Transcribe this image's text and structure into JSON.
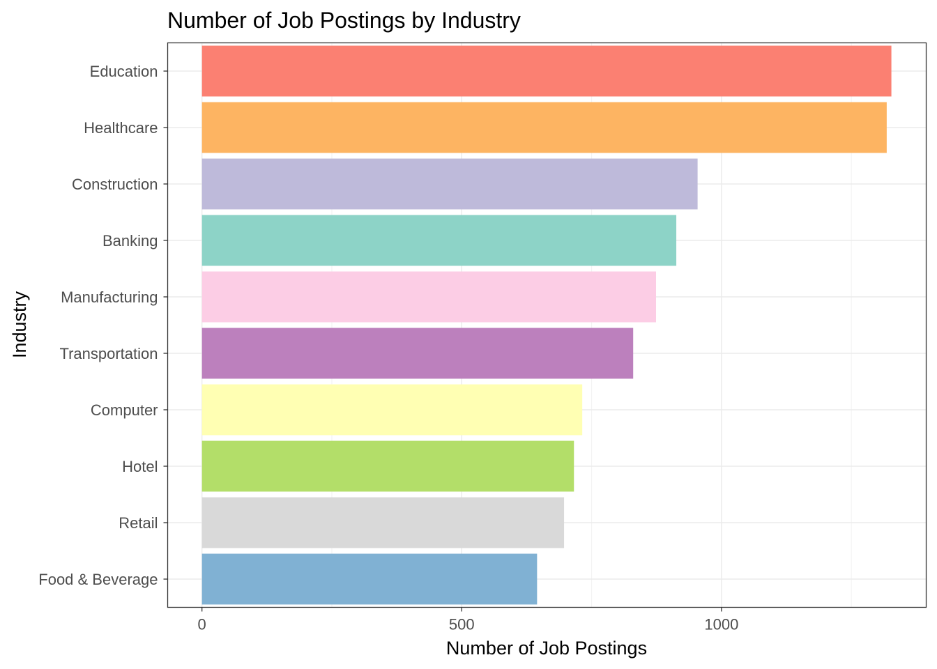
{
  "chart_data": {
    "type": "bar",
    "orientation": "horizontal",
    "title": "Number of Job Postings by Industry",
    "xlabel": "Number of Job Postings",
    "ylabel": "Industry",
    "categories": [
      "Education",
      "Healthcare",
      "Construction",
      "Banking",
      "Manufacturing",
      "Transportation",
      "Computer",
      "Hotel",
      "Retail",
      "Food & Beverage"
    ],
    "values": [
      1327,
      1318,
      954,
      913,
      874,
      830,
      732,
      716,
      697,
      645
    ],
    "colors": [
      "#FB8072",
      "#FDB462",
      "#BEBADA",
      "#8DD3C7",
      "#FCCDE5",
      "#BC80BD",
      "#FFFFB3",
      "#B3DE69",
      "#D9D9D9",
      "#80B1D3"
    ],
    "xlim": [
      -66,
      1394
    ],
    "xticks": [
      "0",
      "500",
      "1000"
    ],
    "xtick_values": [
      0,
      500,
      1000
    ],
    "grid": true,
    "legend": "none"
  }
}
